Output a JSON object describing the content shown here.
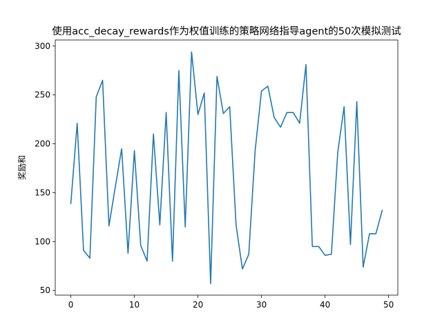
{
  "chart_data": {
    "type": "line",
    "title": "使用acc_decay_rewards作为权值训练的策略网络指导agent的50次模拟测试",
    "xlabel": "",
    "ylabel": "奖励和",
    "xlim": [
      -2.45,
      51.45
    ],
    "ylim": [
      45.2,
      306.2
    ],
    "xticks": [
      0,
      10,
      20,
      30,
      40,
      50
    ],
    "yticks": [
      50,
      100,
      150,
      200,
      250,
      300
    ],
    "grid": false,
    "colors": {
      "line": "#1f77b4"
    },
    "series": [
      {
        "x": [
          0,
          1,
          2,
          3,
          4,
          5,
          6,
          7,
          8,
          9,
          10,
          11,
          12,
          13,
          14,
          15,
          16,
          17,
          18,
          19,
          20,
          21,
          22,
          23,
          24,
          25,
          26,
          27,
          28,
          29,
          30,
          31,
          32,
          33,
          34,
          35,
          36,
          37,
          38,
          39,
          40,
          41,
          42,
          43,
          44,
          45,
          46,
          47,
          48,
          49
        ],
        "values": [
          139,
          221,
          91,
          83,
          248,
          265,
          116,
          156,
          195,
          88,
          193,
          96,
          80,
          210,
          117,
          232,
          80,
          275,
          115,
          294,
          230,
          252,
          57,
          269,
          231,
          238,
          117,
          72,
          87,
          193,
          254,
          259,
          227,
          217,
          232,
          232,
          221,
          281,
          95,
          95,
          86,
          87,
          191,
          238,
          97,
          243,
          74,
          108,
          108,
          132
        ]
      }
    ]
  }
}
